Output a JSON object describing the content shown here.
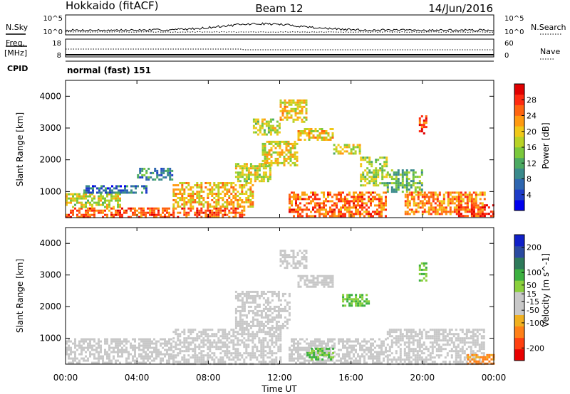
{
  "header": {
    "station": "Hokkaido (fitACF)",
    "beam": "Beam 12",
    "date": "14/Jun/2016"
  },
  "noise_panel": {
    "left_label": "N.Sky",
    "right_label": "N.Search",
    "left_ticks": [
      "10^5",
      "10^0"
    ],
    "right_ticks": [
      "10^5",
      "10^0"
    ]
  },
  "freq_panel": {
    "left_label_line1": "Freq.",
    "left_label_line2": "[MHz]",
    "left_ticks": [
      "18",
      "8"
    ],
    "right_label": "Nave",
    "right_ticks": [
      "60",
      "0"
    ]
  },
  "cpid_panel": {
    "label": "CPID",
    "mode_text": "normal (fast) 151"
  },
  "x_axis": {
    "ticks": [
      "00:00",
      "04:00",
      "08:00",
      "12:00",
      "16:00",
      "20:00",
      "00:00"
    ],
    "label": "Time UT"
  },
  "chart_data": [
    {
      "type": "heatmap",
      "name": "power",
      "ylabel": "Slant Range [km]",
      "yticks": [
        "1000",
        "2000",
        "3000",
        "4000"
      ],
      "ylim": [
        180,
        4500
      ],
      "xlim_hours": [
        0,
        24
      ],
      "colorbar": {
        "label": "Power [dB]",
        "ticks": [
          "4",
          "8",
          "12",
          "16",
          "20",
          "24",
          "28"
        ],
        "range": [
          0,
          32
        ],
        "colors": [
          "#0000ee",
          "#1e3cc8",
          "#2e66b0",
          "#3a8a8c",
          "#4caa62",
          "#7ac83c",
          "#b8d226",
          "#f0c818",
          "#ff9a10",
          "#ff6410",
          "#ff2a10",
          "#e00000"
        ]
      },
      "regions": [
        {
          "t0": 0.0,
          "t1": 6.0,
          "r0": 200,
          "r1": 500,
          "level": 26
        },
        {
          "t0": 0.0,
          "t1": 3.0,
          "r0": 500,
          "r1": 950,
          "level": 18
        },
        {
          "t0": 1.0,
          "t1": 4.5,
          "r0": 950,
          "r1": 1200,
          "level": 7
        },
        {
          "t0": 4.0,
          "t1": 6.0,
          "r0": 1400,
          "r1": 1750,
          "level": 9
        },
        {
          "t0": 6.0,
          "t1": 10.0,
          "r0": 200,
          "r1": 500,
          "level": 26
        },
        {
          "t0": 6.0,
          "t1": 10.5,
          "r0": 500,
          "r1": 1300,
          "level": 21
        },
        {
          "t0": 9.5,
          "t1": 11.5,
          "r0": 1300,
          "r1": 1900,
          "level": 18
        },
        {
          "t0": 11.0,
          "t1": 13.0,
          "r0": 1800,
          "r1": 2600,
          "level": 19
        },
        {
          "t0": 12.0,
          "t1": 13.5,
          "r0": 3200,
          "r1": 3900,
          "level": 20
        },
        {
          "t0": 10.5,
          "t1": 12.0,
          "r0": 2800,
          "r1": 3300,
          "level": 17
        },
        {
          "t0": 13.0,
          "t1": 15.0,
          "r0": 2600,
          "r1": 3000,
          "level": 20
        },
        {
          "t0": 15.0,
          "t1": 16.5,
          "r0": 2200,
          "r1": 2500,
          "level": 18
        },
        {
          "t0": 16.5,
          "t1": 18.0,
          "r0": 1200,
          "r1": 2100,
          "level": 16
        },
        {
          "t0": 12.5,
          "t1": 18.0,
          "r0": 200,
          "r1": 1000,
          "level": 25
        },
        {
          "t0": 18.0,
          "t1": 20.0,
          "r0": 1000,
          "r1": 1700,
          "level": 13
        },
        {
          "t0": 19.0,
          "t1": 23.5,
          "r0": 300,
          "r1": 1000,
          "level": 24
        },
        {
          "t0": 22.0,
          "t1": 24.0,
          "r0": 200,
          "r1": 600,
          "level": 28
        },
        {
          "t0": 19.8,
          "t1": 20.2,
          "r0": 2800,
          "r1": 3400,
          "level": 27
        }
      ]
    },
    {
      "type": "heatmap",
      "name": "velocity",
      "ylabel": "Slant Range [km]",
      "yticks": [
        "1000",
        "2000",
        "3000",
        "4000"
      ],
      "ylim": [
        180,
        4500
      ],
      "xlim_hours": [
        0,
        24
      ],
      "colorbar": {
        "label": "Velocity [m s^-1]",
        "ticks": [
          "200",
          "100",
          "50",
          "15",
          "-15",
          "-50",
          "-100",
          "-200"
        ],
        "range": [
          -250,
          250
        ],
        "colors": [
          "#e80000",
          "#ff4010",
          "#ff8018",
          "#f0b020",
          "#c8c8c8",
          "#c8c8c8",
          "#8ad03c",
          "#3cb040",
          "#2e7a5a",
          "#2a4aa0",
          "#1020c8"
        ]
      },
      "regions": [
        {
          "t0": 0.0,
          "t1": 6.0,
          "r0": 200,
          "r1": 1000,
          "level": 0
        },
        {
          "t0": 6.0,
          "t1": 12.0,
          "r0": 200,
          "r1": 1300,
          "level": 0
        },
        {
          "t0": 9.5,
          "t1": 12.5,
          "r0": 1300,
          "r1": 2500,
          "level": 0
        },
        {
          "t0": 12.0,
          "t1": 13.5,
          "r0": 3200,
          "r1": 3800,
          "level": 0
        },
        {
          "t0": 13.0,
          "t1": 15.0,
          "r0": 2600,
          "r1": 3000,
          "level": 0
        },
        {
          "t0": 15.5,
          "t1": 17.0,
          "r0": 2000,
          "r1": 2400,
          "level": 70
        },
        {
          "t0": 12.5,
          "t1": 18.0,
          "r0": 200,
          "r1": 1000,
          "level": 0
        },
        {
          "t0": 13.5,
          "t1": 15.0,
          "r0": 300,
          "r1": 700,
          "level": 70
        },
        {
          "t0": 18.0,
          "t1": 23.5,
          "r0": 200,
          "r1": 1300,
          "level": 0
        },
        {
          "t0": 19.8,
          "t1": 20.2,
          "r0": 2800,
          "r1": 3400,
          "level": 70
        },
        {
          "t0": 22.5,
          "t1": 24.0,
          "r0": 200,
          "r1": 500,
          "level": -120
        }
      ]
    }
  ]
}
